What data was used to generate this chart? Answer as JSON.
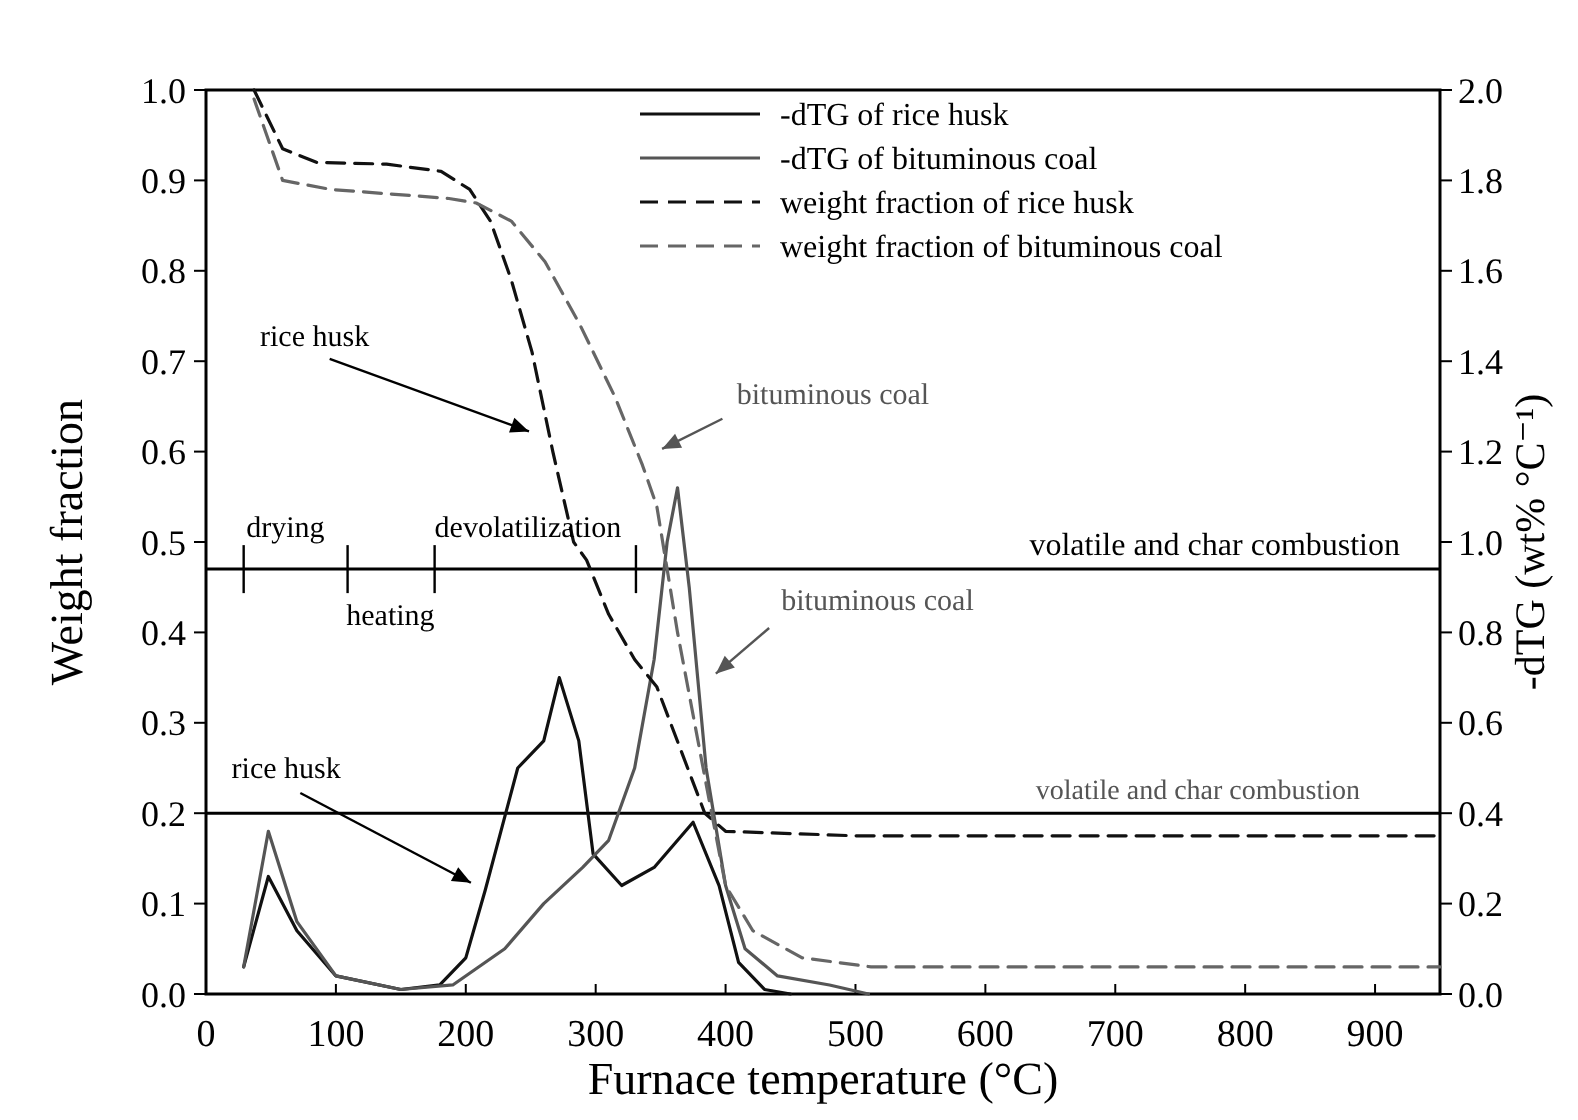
{
  "chart_data": {
    "type": "line",
    "xlabel": "Furnace temperature (°C)",
    "ylabel": "Weight  fraction",
    "y2label": "-dTG (wt% °C⁻¹)",
    "xlim": [
      0,
      950
    ],
    "xticks": [
      0,
      100,
      200,
      300,
      400,
      500,
      600,
      700,
      800,
      900
    ],
    "ylim": [
      0,
      1
    ],
    "yticks": [
      {
        "value": 0,
        "label": "0.0"
      },
      0.1,
      0.2,
      0.3,
      0.4,
      0.5,
      0.6,
      0.7,
      0.8,
      0.9,
      {
        "value": 1,
        "label": "1.0"
      }
    ],
    "y2lim": [
      0,
      2
    ],
    "y2ticks": [
      {
        "value": 0,
        "label": "0.0"
      },
      0.2,
      0.4,
      0.6,
      0.8,
      {
        "value": 1,
        "label": "1.0"
      },
      1.2,
      1.4,
      1.6,
      1.8,
      {
        "value": 2,
        "label": "2.0"
      }
    ],
    "legend": "top right",
    "grid": false,
    "marker": "none",
    "series": [
      {
        "name": "-dTG of rice husk",
        "color": "#111111",
        "axis": "y2",
        "line_style": "solid",
        "x": [
          29,
          48,
          70,
          100,
          150,
          180,
          200,
          215,
          240,
          260,
          272,
          287,
          298,
          320,
          345,
          375,
          395,
          410,
          430,
          450
        ],
        "values": [
          0.06,
          0.26,
          0.14,
          0.04,
          0.01,
          0.02,
          0.08,
          0.23,
          0.5,
          0.56,
          0.7,
          0.56,
          0.31,
          0.24,
          0.28,
          0.38,
          0.24,
          0.07,
          0.01,
          0
        ]
      },
      {
        "name": "-dTG of bituminous coal",
        "color": "#555555",
        "axis": "y2",
        "line_style": "solid",
        "x": [
          29,
          48,
          70,
          100,
          150,
          190,
          230,
          260,
          290,
          310,
          330,
          345,
          355,
          363,
          372,
          385,
          400,
          415,
          440,
          480,
          510
        ],
        "values": [
          0.06,
          0.36,
          0.16,
          0.04,
          0.01,
          0.02,
          0.1,
          0.2,
          0.28,
          0.34,
          0.5,
          0.74,
          1.0,
          1.12,
          0.9,
          0.5,
          0.24,
          0.1,
          0.04,
          0.02,
          0
        ]
      },
      {
        "name": "weight fraction of rice husk",
        "color": "#111111",
        "axis": "y",
        "line_style": "dashed",
        "x": [
          37,
          59,
          85,
          139,
          181,
          203,
          219,
          235,
          251,
          267,
          283,
          293,
          310,
          330,
          347,
          384,
          400,
          500,
          700,
          950
        ],
        "values": [
          1.0,
          0.935,
          0.92,
          0.918,
          0.91,
          0.89,
          0.855,
          0.79,
          0.71,
          0.6,
          0.5,
          0.48,
          0.42,
          0.37,
          0.34,
          0.2,
          0.18,
          0.175,
          0.175,
          0.175
        ]
      },
      {
        "name": "weight fraction of bituminous coal",
        "color": "#666666",
        "axis": "y",
        "line_style": "dashed",
        "x": [
          37,
          59,
          96,
          187,
          208,
          235,
          261,
          288,
          315,
          336,
          347,
          363,
          384,
          400,
          421,
          459,
          512,
          700,
          950
        ],
        "values": [
          0.99,
          0.9,
          0.89,
          0.88,
          0.875,
          0.855,
          0.81,
          0.74,
          0.66,
          0.585,
          0.54,
          0.4,
          0.24,
          0.12,
          0.07,
          0.04,
          0.03,
          0.03,
          0.03
        ]
      }
    ],
    "ref_lines": [
      {
        "axis": "y",
        "value": 0.47,
        "label": "volatile and char combustion"
      },
      {
        "axis": "y",
        "value": 0.2,
        "label": "volatile and char combustion"
      }
    ],
    "annotations": [
      "rice husk",
      "bituminous coal",
      "bituminous coal",
      "rice husk",
      "drying",
      "heating",
      "devolatilization"
    ]
  }
}
